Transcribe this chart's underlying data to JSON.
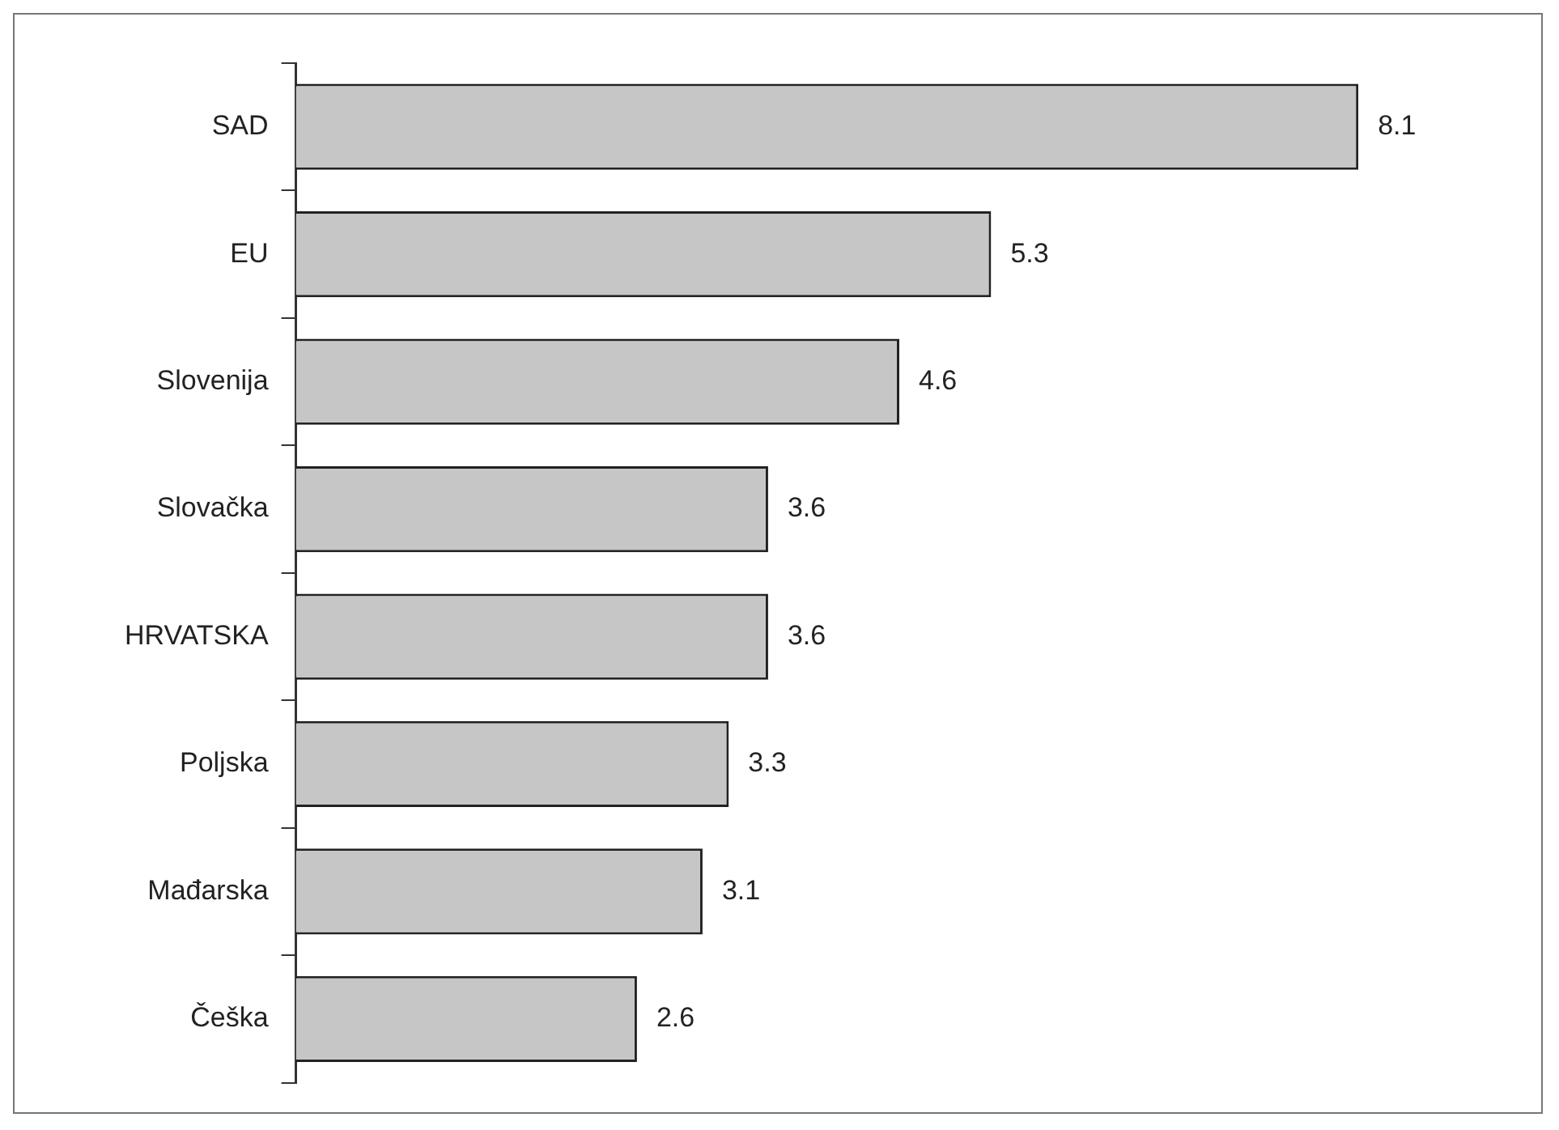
{
  "chart_data": {
    "type": "bar",
    "orientation": "horizontal",
    "categories": [
      "SAD",
      "EU",
      "Slovenija",
      "Slovačka",
      "HRVATSKA",
      "Poljska",
      "Mađarska",
      "Češka"
    ],
    "values": [
      8.1,
      5.3,
      4.6,
      3.6,
      3.6,
      3.3,
      3.1,
      2.6
    ],
    "color": "#c6c6c6",
    "data_labels": true,
    "tick_labels": "y"
  }
}
